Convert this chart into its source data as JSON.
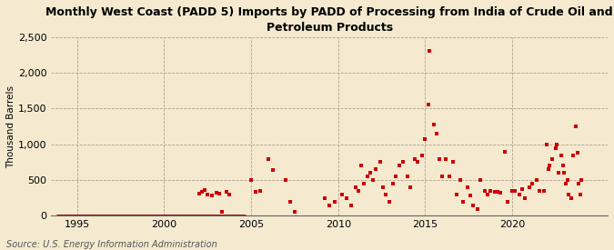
{
  "title": "Monthly West Coast (PADD 5) Imports by PADD of Processing from India of Crude Oil and\nPetroleum Products",
  "ylabel": "Thousand Barrels",
  "source": "Source: U.S. Energy Information Administration",
  "background_color": "#f5ead0",
  "marker_color": "#cc0000",
  "line_color": "#8b0000",
  "ylim": [
    0,
    2500
  ],
  "yticks": [
    0,
    500,
    1000,
    1500,
    2000,
    2500
  ],
  "xlim_start": 1993.5,
  "xlim_end": 2025.5,
  "xticks": [
    1995,
    2000,
    2005,
    2010,
    2015,
    2020
  ],
  "data_points": [
    [
      2002.0,
      310
    ],
    [
      2002.17,
      330
    ],
    [
      2002.33,
      360
    ],
    [
      2002.5,
      300
    ],
    [
      2002.75,
      280
    ],
    [
      2003.0,
      320
    ],
    [
      2003.17,
      310
    ],
    [
      2003.33,
      50
    ],
    [
      2003.58,
      330
    ],
    [
      2003.75,
      300
    ],
    [
      2005.0,
      500
    ],
    [
      2005.25,
      330
    ],
    [
      2005.5,
      350
    ],
    [
      2006.0,
      800
    ],
    [
      2006.25,
      640
    ],
    [
      2007.0,
      500
    ],
    [
      2007.25,
      200
    ],
    [
      2007.5,
      50
    ],
    [
      2009.25,
      250
    ],
    [
      2009.5,
      150
    ],
    [
      2009.83,
      200
    ],
    [
      2010.25,
      300
    ],
    [
      2010.5,
      250
    ],
    [
      2010.75,
      150
    ],
    [
      2011.0,
      400
    ],
    [
      2011.17,
      350
    ],
    [
      2011.33,
      700
    ],
    [
      2011.5,
      450
    ],
    [
      2011.67,
      550
    ],
    [
      2011.83,
      600
    ],
    [
      2012.0,
      500
    ],
    [
      2012.17,
      650
    ],
    [
      2012.42,
      750
    ],
    [
      2012.58,
      400
    ],
    [
      2012.75,
      300
    ],
    [
      2012.92,
      200
    ],
    [
      2013.17,
      450
    ],
    [
      2013.33,
      550
    ],
    [
      2013.5,
      700
    ],
    [
      2013.75,
      750
    ],
    [
      2014.0,
      550
    ],
    [
      2014.17,
      400
    ],
    [
      2014.42,
      800
    ],
    [
      2014.58,
      750
    ],
    [
      2014.83,
      850
    ],
    [
      2015.0,
      1080
    ],
    [
      2015.17,
      1560
    ],
    [
      2015.25,
      2310
    ],
    [
      2015.5,
      1280
    ],
    [
      2015.67,
      1150
    ],
    [
      2015.83,
      800
    ],
    [
      2016.0,
      550
    ],
    [
      2016.17,
      800
    ],
    [
      2016.42,
      550
    ],
    [
      2016.58,
      750
    ],
    [
      2016.83,
      300
    ],
    [
      2017.0,
      500
    ],
    [
      2017.17,
      200
    ],
    [
      2017.42,
      400
    ],
    [
      2017.58,
      280
    ],
    [
      2017.75,
      150
    ],
    [
      2018.0,
      100
    ],
    [
      2018.17,
      500
    ],
    [
      2018.42,
      350
    ],
    [
      2018.58,
      300
    ],
    [
      2018.75,
      350
    ],
    [
      2019.0,
      330
    ],
    [
      2019.17,
      330
    ],
    [
      2019.33,
      320
    ],
    [
      2019.58,
      900
    ],
    [
      2019.75,
      200
    ],
    [
      2020.0,
      350
    ],
    [
      2020.17,
      350
    ],
    [
      2020.42,
      300
    ],
    [
      2020.58,
      380
    ],
    [
      2020.75,
      250
    ],
    [
      2021.0,
      400
    ],
    [
      2021.17,
      450
    ],
    [
      2021.42,
      500
    ],
    [
      2021.58,
      350
    ],
    [
      2021.83,
      350
    ],
    [
      2022.0,
      1000
    ],
    [
      2022.08,
      650
    ],
    [
      2022.17,
      700
    ],
    [
      2022.33,
      800
    ],
    [
      2022.5,
      950
    ],
    [
      2022.58,
      1000
    ],
    [
      2022.67,
      600
    ],
    [
      2022.83,
      850
    ],
    [
      2022.92,
      700
    ],
    [
      2023.0,
      600
    ],
    [
      2023.08,
      450
    ],
    [
      2023.17,
      500
    ],
    [
      2023.25,
      300
    ],
    [
      2023.42,
      250
    ],
    [
      2023.5,
      850
    ],
    [
      2023.67,
      1250
    ],
    [
      2023.75,
      880
    ],
    [
      2023.83,
      450
    ],
    [
      2023.92,
      300
    ],
    [
      2024.0,
      500
    ]
  ],
  "zero_line_x": [
    1993.8,
    2004.7
  ],
  "zero_line_y": [
    0,
    0
  ],
  "title_fontsize": 9,
  "tick_fontsize": 8,
  "ylabel_fontsize": 7.5,
  "source_fontsize": 7
}
